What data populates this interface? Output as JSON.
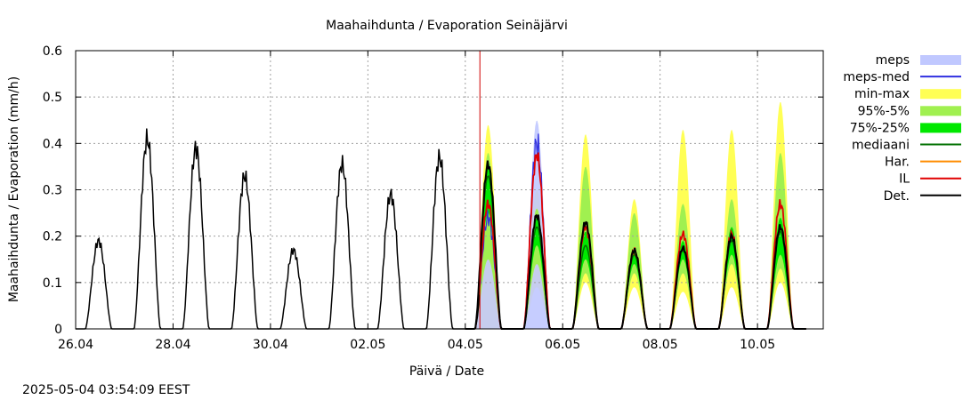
{
  "chart_data": {
    "type": "area",
    "title": "Maahaihdunta / Evaporation  Seinäjärvi",
    "xlabel": "Päivä / Date",
    "ylabel": "Maahaihdunta / Evaporation (mm/h)",
    "ylim": [
      0,
      0.6
    ],
    "xlim_days": [
      0,
      15.35
    ],
    "yticks": [
      "0",
      "0.1",
      "0.2",
      "0.3",
      "0.4",
      "0.5",
      "0.6"
    ],
    "xticks": [
      {
        "day": 0,
        "label": "26.04"
      },
      {
        "day": 2,
        "label": "28.04"
      },
      {
        "day": 4,
        "label": "30.04"
      },
      {
        "day": 6,
        "label": "02.05"
      },
      {
        "day": 8,
        "label": "04.05"
      },
      {
        "day": 10,
        "label": "06.05"
      },
      {
        "day": 12,
        "label": "08.05"
      },
      {
        "day": 14,
        "label": "10.05"
      }
    ],
    "grid": true,
    "forecast_start_day": 8.3,
    "timestamp": "2025-05-04 03:54:09 EEST",
    "legend": [
      {
        "key": "meps",
        "label": "meps",
        "kind": "band",
        "color": "#c0c8ff"
      },
      {
        "key": "meps_med",
        "label": "meps-med",
        "kind": "line",
        "color": "#3030e0"
      },
      {
        "key": "minmax",
        "label": "min-max",
        "kind": "band",
        "color": "#ffff55"
      },
      {
        "key": "p95_5",
        "label": "95%-5%",
        "kind": "band",
        "color": "#a0f050"
      },
      {
        "key": "p75_25",
        "label": "75%-25%",
        "kind": "band",
        "color": "#00e800"
      },
      {
        "key": "mediaani",
        "label": "mediaani",
        "kind": "line",
        "color": "#007000"
      },
      {
        "key": "har",
        "label": "Har.",
        "kind": "line",
        "color": "#ff8c00"
      },
      {
        "key": "il",
        "label": "IL",
        "kind": "line",
        "color": "#e00000"
      },
      {
        "key": "det",
        "label": "Det.",
        "kind": "line",
        "color": "#000000"
      }
    ],
    "observed_daily_peaks": [
      {
        "day": 0,
        "peak": 0.19
      },
      {
        "day": 1,
        "peak": 0.41
      },
      {
        "day": 2,
        "peak": 0.39
      },
      {
        "day": 3,
        "peak": 0.33
      },
      {
        "day": 4,
        "peak": 0.17
      },
      {
        "day": 5,
        "peak": 0.355
      },
      {
        "day": 6,
        "peak": 0.29
      },
      {
        "day": 7,
        "peak": 0.37
      },
      {
        "day": 8,
        "peak": 0.21
      }
    ],
    "forecast_days": [
      {
        "day": 8,
        "min": 0.0,
        "max": 0.44,
        "p5": 0.15,
        "p95": 0.38,
        "p25": 0.25,
        "p75": 0.36,
        "median": 0.33,
        "det": 0.355,
        "il": 0.27,
        "meps_med": 0.24,
        "meps_max": 0.34
      },
      {
        "day": 9,
        "min": 0.09,
        "max": 0.3,
        "p5": 0.14,
        "p95": 0.26,
        "p25": 0.18,
        "p75": 0.24,
        "median": 0.22,
        "det": 0.245,
        "il": 0.375,
        "meps_med": 0.4,
        "meps_max": 0.45
      },
      {
        "day": 10,
        "min": 0.1,
        "max": 0.42,
        "p5": 0.12,
        "p95": 0.35,
        "p25": 0.15,
        "p75": 0.21,
        "median": 0.18,
        "det": 0.23,
        "il": 0.22
      },
      {
        "day": 11,
        "min": 0.09,
        "max": 0.28,
        "p5": 0.12,
        "p95": 0.25,
        "p25": 0.14,
        "p75": 0.17,
        "median": 0.16,
        "det": 0.17,
        "il": 0.17
      },
      {
        "day": 12,
        "min": 0.08,
        "max": 0.43,
        "p5": 0.12,
        "p95": 0.27,
        "p25": 0.15,
        "p75": 0.19,
        "median": 0.17,
        "det": 0.175,
        "il": 0.205
      },
      {
        "day": 13,
        "min": 0.09,
        "max": 0.43,
        "p5": 0.14,
        "p95": 0.28,
        "p25": 0.16,
        "p75": 0.22,
        "median": 0.19,
        "det": 0.2,
        "il": 0.205
      },
      {
        "day": 14,
        "min": 0.1,
        "max": 0.49,
        "p5": 0.13,
        "p95": 0.38,
        "p25": 0.16,
        "p75": 0.24,
        "median": 0.21,
        "det": 0.22,
        "il": 0.27
      }
    ]
  }
}
